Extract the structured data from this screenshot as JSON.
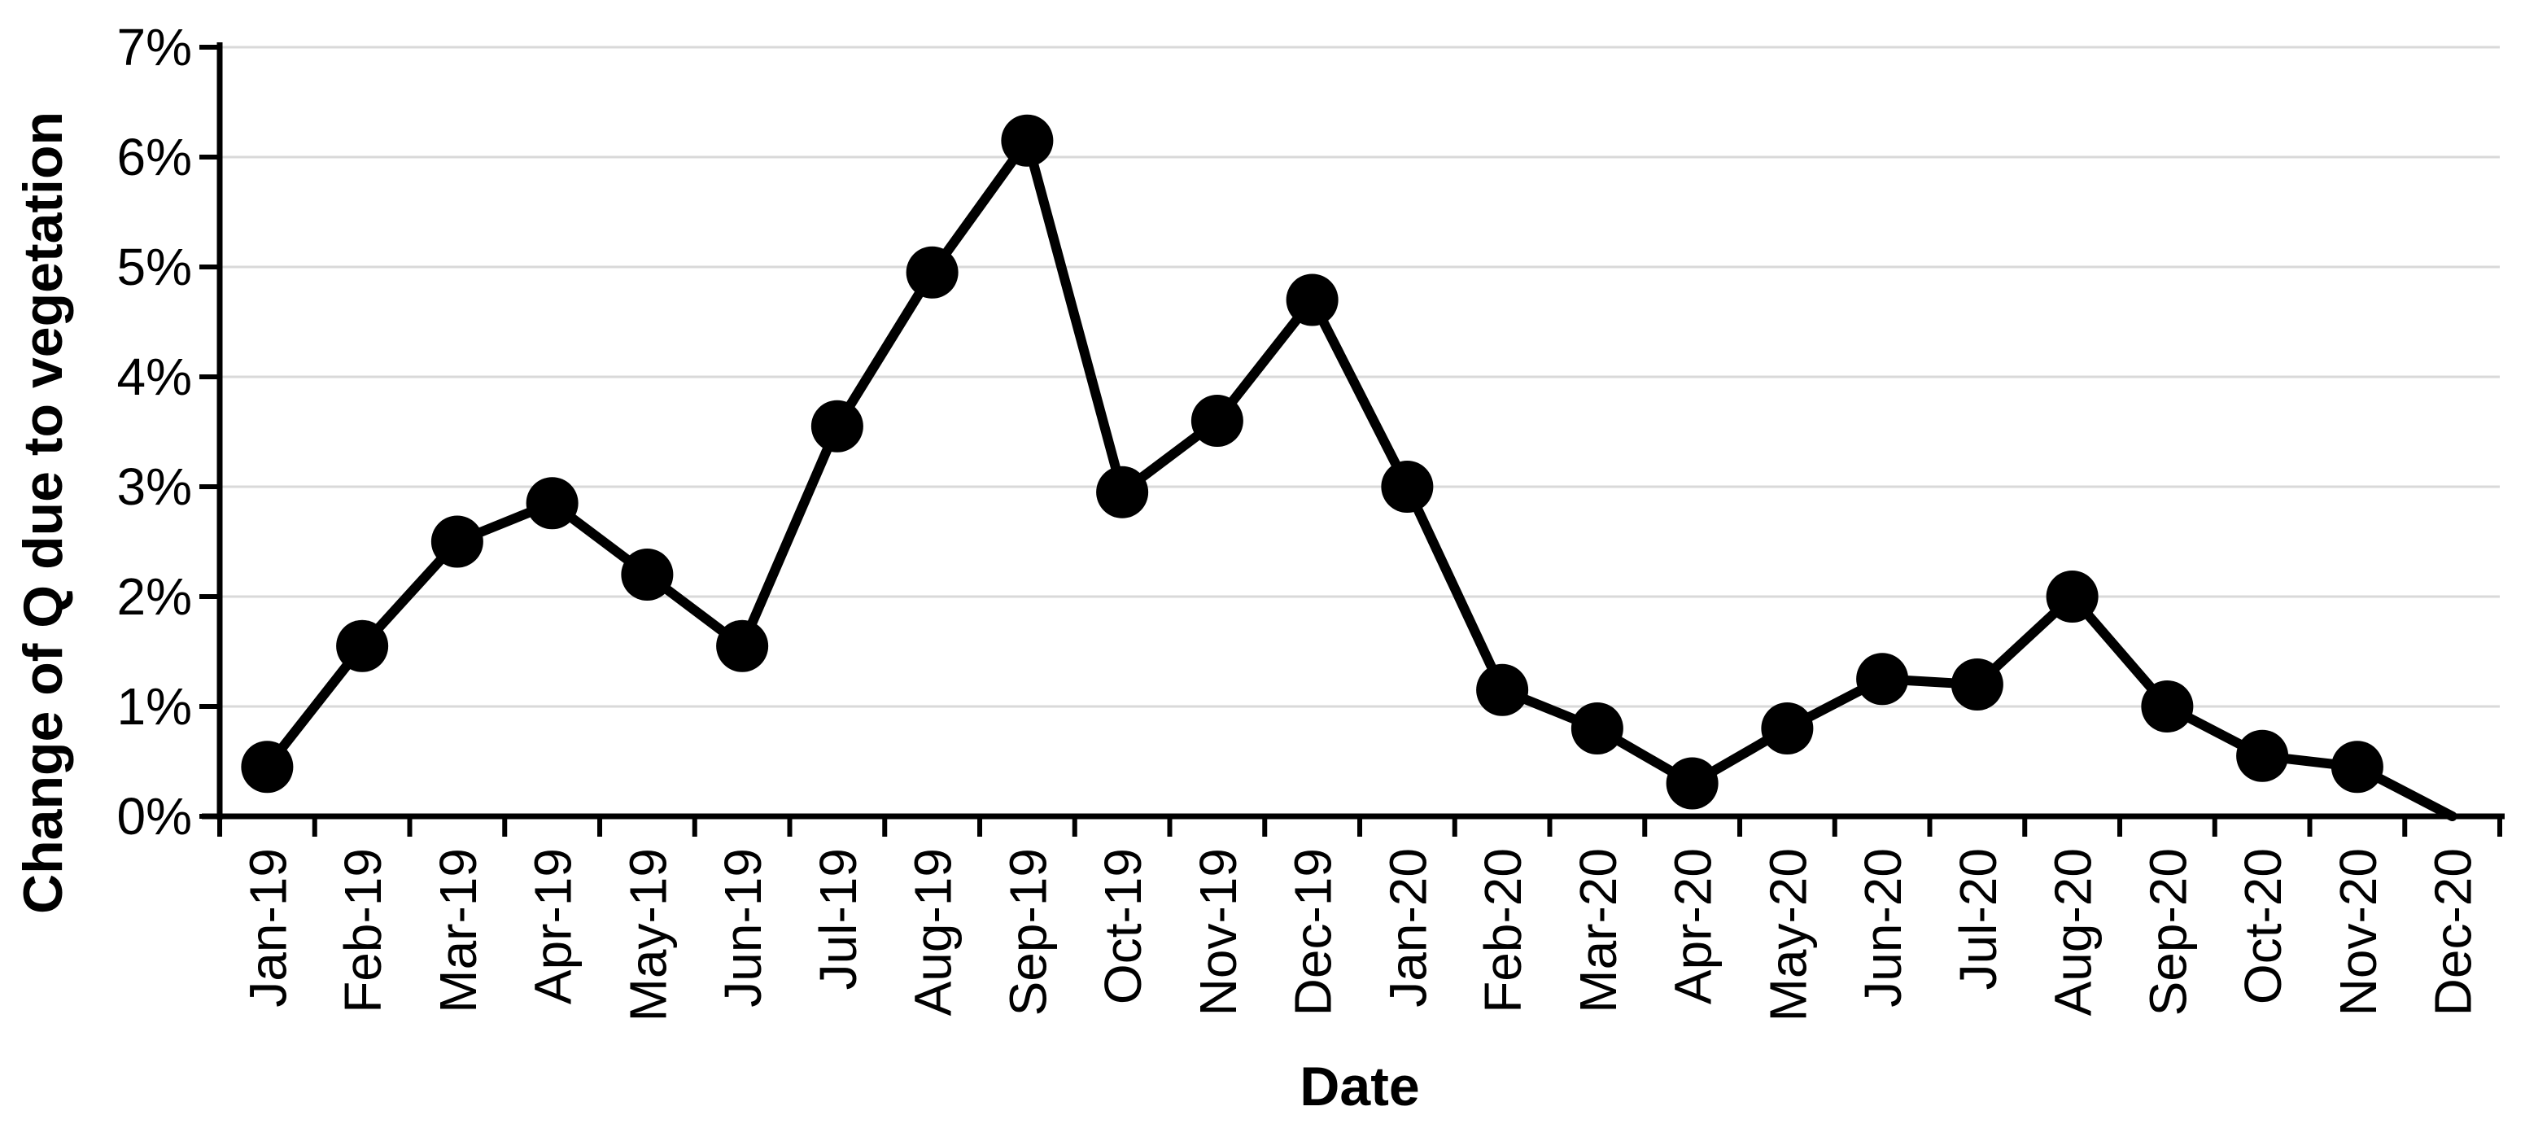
{
  "chart_data": {
    "type": "line",
    "title": "",
    "xlabel": "Date",
    "ylabel": "Change of Q due to vegetation",
    "categories": [
      "Jan-19",
      "Feb-19",
      "Mar-19",
      "Apr-19",
      "May-19",
      "Jun-19",
      "Jul-19",
      "Aug-19",
      "Sep-19",
      "Oct-19",
      "Nov-19",
      "Dec-19",
      "Jan-20",
      "Feb-20",
      "Mar-20",
      "Apr-20",
      "May-20",
      "Jun-20",
      "Jul-20",
      "Aug-20",
      "Sep-20",
      "Oct-20",
      "Nov-20",
      "Dec-20"
    ],
    "values": [
      0.45,
      1.55,
      2.5,
      2.85,
      2.2,
      1.55,
      3.55,
      4.95,
      6.15,
      2.95,
      3.6,
      4.7,
      3.0,
      1.15,
      0.8,
      0.3,
      0.8,
      1.25,
      1.2,
      2.0,
      1.0,
      0.55,
      0.45,
      0.0
    ],
    "ylim": [
      0,
      7
    ],
    "ytick_step": 1,
    "ytick_labels": [
      "0%",
      "1%",
      "2%",
      "3%",
      "4%",
      "5%",
      "6%",
      "7%"
    ],
    "grid": "horizontal",
    "legend": "none",
    "series_color": "#000000",
    "axis_color": "#000000",
    "gridline_color": "#D9D9D9",
    "marker": "filled-circle"
  }
}
